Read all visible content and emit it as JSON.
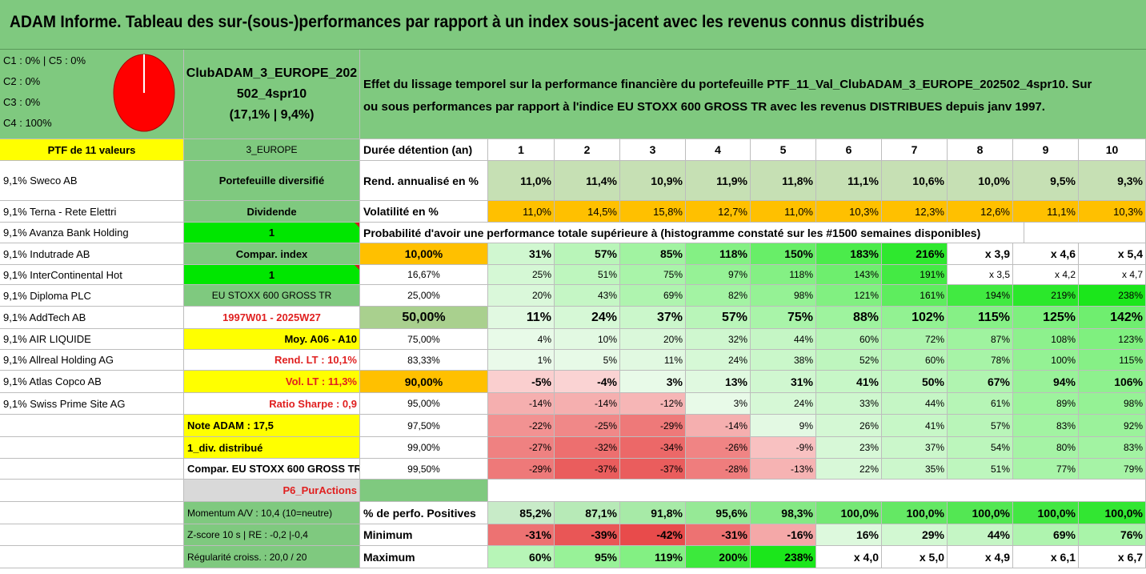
{
  "title": "ADAM Informe. Tableau des sur-(sous-)performances par rapport à un index sous-jacent avec les revenus connus distribués",
  "legend": [
    "C1 : 0% | C5 : 0%",
    "C2 : 0%",
    "C3 : 0%",
    "C4 : 100%"
  ],
  "pie_color": "#ff0000",
  "portfolio": {
    "name_line1": "ClubADAM_3_EUROPE_202",
    "name_line2": "502_4spr10",
    "name_line3": "(17,1% | 9,4%)"
  },
  "description": {
    "line1": "Effet du lissage temporel sur la performance financière du portefeuille PTF_11_Val_ClubADAM_3_EUROPE_202502_4spr10. Sur",
    "line2": "ou sous performances par rapport à l'indice EU STOXX 600 GROSS TR avec les revenus DISTRIBUES depuis janv 1997."
  },
  "ptf_header": "PTF de 11 valeurs",
  "holdings": [
    "9,1% Sweco AB",
    "9,1% Terna - Rete Elettri",
    "9,1% Avanza Bank Holding",
    "9,1% Indutrade AB",
    "9,1% InterContinental Hot",
    "9,1% Diploma PLC",
    "9,1% AddTech AB",
    "9,1% AIR LIQUIDE",
    "9,1% Allreal Holding AG",
    "9,1% Atlas Copco AB",
    "9,1% Swiss Prime Site AG"
  ],
  "params": {
    "region": "3_EUROPE",
    "type": "Portefeuille diversifié",
    "dividend_label": "Dividende",
    "dividend_value": "1",
    "compar_label": "Compar. index",
    "compar_value": "1",
    "index_name": "EU STOXX 600 GROSS TR",
    "period": "1997W01 - 2025W27",
    "avg": "Moy. A06 - A10",
    "rend_lt": "Rend. LT : 10,1%",
    "vol_lt": "Vol. LT : 11,3%",
    "sharpe": "Ratio Sharpe : 0,9",
    "note": "Note ADAM : 17,5",
    "div_distrib": "1_div. distribué",
    "compar_full": "Compar. EU STOXX 600 GROSS TR",
    "p6": "P6_PurActions",
    "momentum": "Momentum A/V : 10,4 (10=neutre)",
    "zscore": "Z-score 10 s | RE : -0,2 |-0,4",
    "regularite": "Régularité croiss. : 20,0 / 20"
  },
  "table": {
    "duration_label": "Durée détention (an)",
    "years": [
      "1",
      "2",
      "3",
      "4",
      "5",
      "6",
      "7",
      "8",
      "9",
      "10"
    ],
    "rend_label": "Rend. annualisé en %",
    "rend": [
      "11,0%",
      "11,4%",
      "10,9%",
      "11,9%",
      "11,8%",
      "11,1%",
      "10,6%",
      "10,0%",
      "9,5%",
      "9,3%"
    ],
    "vol_label": "Volatilité en %",
    "vol": [
      "11,0%",
      "14,5%",
      "15,8%",
      "12,7%",
      "11,0%",
      "10,3%",
      "12,3%",
      "12,6%",
      "11,1%",
      "10,3%"
    ],
    "proba_header": "Probabilité d'avoir une performance totale supérieure à (histogramme constaté sur les #1500 semaines disponibles)",
    "proba_rows": [
      {
        "p": "10,00%",
        "v": [
          "31%",
          "57%",
          "85%",
          "118%",
          "150%",
          "183%",
          "216%",
          "x 3,9",
          "x 4,6",
          "x 5,4"
        ]
      },
      {
        "p": "16,67%",
        "v": [
          "25%",
          "51%",
          "75%",
          "97%",
          "118%",
          "143%",
          "191%",
          "x 3,5",
          "x 4,2",
          "x 4,7"
        ]
      },
      {
        "p": "25,00%",
        "v": [
          "20%",
          "43%",
          "69%",
          "82%",
          "98%",
          "121%",
          "161%",
          "194%",
          "219%",
          "238%"
        ]
      },
      {
        "p": "50,00%",
        "v": [
          "11%",
          "24%",
          "37%",
          "57%",
          "75%",
          "88%",
          "102%",
          "115%",
          "125%",
          "142%"
        ]
      },
      {
        "p": "75,00%",
        "v": [
          "4%",
          "10%",
          "20%",
          "32%",
          "44%",
          "60%",
          "72%",
          "87%",
          "108%",
          "123%"
        ]
      },
      {
        "p": "83,33%",
        "v": [
          "1%",
          "5%",
          "11%",
          "24%",
          "38%",
          "52%",
          "60%",
          "78%",
          "100%",
          "115%"
        ]
      },
      {
        "p": "90,00%",
        "v": [
          "-5%",
          "-4%",
          "3%",
          "13%",
          "31%",
          "41%",
          "50%",
          "67%",
          "94%",
          "106%"
        ]
      },
      {
        "p": "95,00%",
        "v": [
          "-14%",
          "-14%",
          "-12%",
          "3%",
          "24%",
          "33%",
          "44%",
          "61%",
          "89%",
          "98%"
        ]
      },
      {
        "p": "97,50%",
        "v": [
          "-22%",
          "-25%",
          "-29%",
          "-14%",
          "9%",
          "26%",
          "41%",
          "57%",
          "83%",
          "92%"
        ]
      },
      {
        "p": "99,00%",
        "v": [
          "-27%",
          "-32%",
          "-34%",
          "-26%",
          "-9%",
          "23%",
          "37%",
          "54%",
          "80%",
          "83%"
        ]
      },
      {
        "p": "99,50%",
        "v": [
          "-29%",
          "-37%",
          "-37%",
          "-28%",
          "-13%",
          "22%",
          "35%",
          "51%",
          "77%",
          "79%"
        ]
      }
    ],
    "pos_label": "% de perfo. Positives",
    "pos": [
      "85,2%",
      "87,1%",
      "91,8%",
      "95,6%",
      "98,3%",
      "100,0%",
      "100,0%",
      "100,0%",
      "100,0%",
      "100,0%"
    ],
    "min_label": "Minimum",
    "min": [
      "-31%",
      "-39%",
      "-42%",
      "-31%",
      "-16%",
      "16%",
      "29%",
      "44%",
      "69%",
      "76%"
    ],
    "max_label": "Maximum",
    "max": [
      "60%",
      "95%",
      "119%",
      "200%",
      "238%",
      "x 4,0",
      "x 5,0",
      "x 4,9",
      "x 6,1",
      "x 6,7"
    ]
  }
}
